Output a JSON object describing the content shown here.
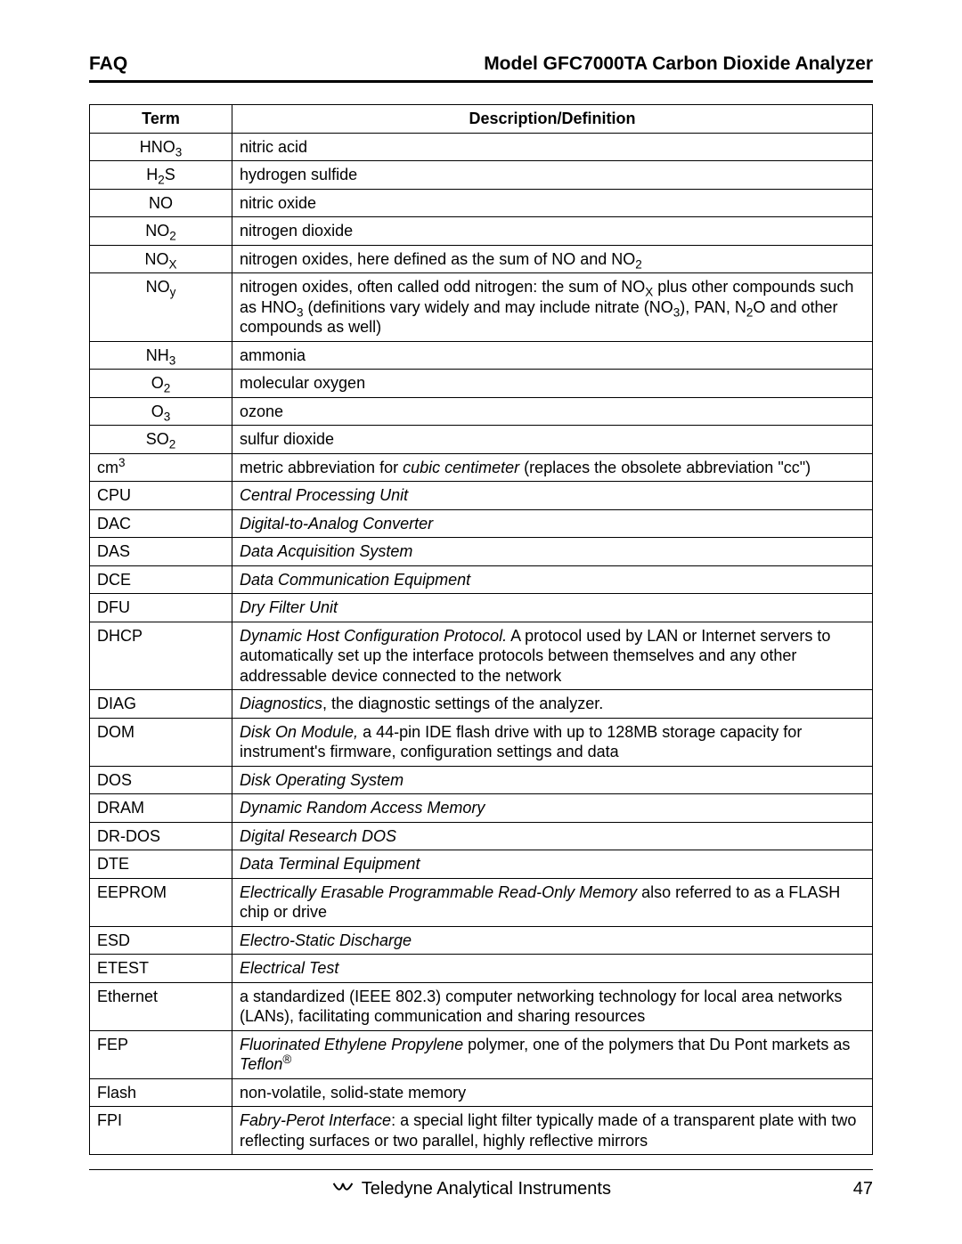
{
  "header": {
    "left": "FAQ",
    "right": "Model GFC7000TA Carbon Dioxide Analyzer"
  },
  "table": {
    "columns": [
      "Term",
      "Description/Definition"
    ],
    "rows": [
      {
        "term_html": "HNO<sub>3</sub>",
        "center": true,
        "def_html": "nitric acid"
      },
      {
        "term_html": "H<sub>2</sub>S",
        "center": true,
        "def_html": "hydrogen sulfide"
      },
      {
        "term_html": "NO",
        "center": true,
        "def_html": "nitric oxide"
      },
      {
        "term_html": "NO<sub>2</sub>",
        "center": true,
        "def_html": "nitrogen dioxide"
      },
      {
        "term_html": "NO<sub>X</sub>",
        "center": true,
        "def_html": "nitrogen oxides, here defined as the sum of NO and NO<sub>2</sub>"
      },
      {
        "term_html": "NO<sub>y</sub>",
        "center": true,
        "def_html": "nitrogen oxides, often called odd nitrogen: the sum of NO<sub>X</sub> plus other compounds such as HNO<sub>3</sub> (definitions vary widely and may include nitrate (NO<sub>3</sub>), PAN, N<sub>2</sub>O and other compounds as well)"
      },
      {
        "term_html": "NH<sub>3</sub>",
        "center": true,
        "def_html": "ammonia"
      },
      {
        "term_html": "O<sub>2</sub>",
        "center": true,
        "def_html": "molecular oxygen"
      },
      {
        "term_html": "O<sub>3</sub>",
        "center": true,
        "def_html": "ozone"
      },
      {
        "term_html": "SO<sub>2</sub>",
        "center": true,
        "def_html": "sulfur dioxide"
      },
      {
        "term_html": "cm<sup>3</sup>",
        "center": false,
        "def_html": "metric abbreviation for <i>cubic centimeter</i>  (replaces the obsolete abbreviation \"cc\")"
      },
      {
        "term_html": "CPU",
        "center": false,
        "def_html": "<i>Central Processing Unit</i>"
      },
      {
        "term_html": "DAC",
        "center": false,
        "def_html": "<i>Digital-to-Analog Converter</i>"
      },
      {
        "term_html": "DAS",
        "center": false,
        "def_html": "<i>Data Acquisition System</i>"
      },
      {
        "term_html": "DCE",
        "center": false,
        "def_html": "<i>Data Communication Equipment</i>"
      },
      {
        "term_html": "DFU",
        "center": false,
        "def_html": "<i>Dry Filter Unit</i>"
      },
      {
        "term_html": "DHCP",
        "center": false,
        "def_html": "<i>Dynamic Host Configuration Protocol.</i>  A protocol used by LAN or Internet servers to automatically set up the interface protocols between themselves and any other addressable device connected to the network"
      },
      {
        "term_html": "DIAG",
        "center": false,
        "def_html": "<i>Diagnostics</i>, the diagnostic settings of the analyzer."
      },
      {
        "term_html": "DOM",
        "center": false,
        "def_html": "<i>Disk On Module,</i> a 44-pin IDE flash drive with up to 128MB storage capacity for instrument's firmware, configuration settings and data"
      },
      {
        "term_html": "DOS",
        "center": false,
        "def_html": "<i>Disk Operating System</i>"
      },
      {
        "term_html": "DRAM",
        "center": false,
        "def_html": "<i>Dynamic Random Access Memory</i>"
      },
      {
        "term_html": "DR-DOS",
        "center": false,
        "def_html": "<i>Digital Research DOS</i>"
      },
      {
        "term_html": "DTE",
        "center": false,
        "def_html": "<i>Data Terminal Equipment</i>"
      },
      {
        "term_html": "EEPROM",
        "center": false,
        "def_html": "<i>Electrically Erasable Programmable Read-Only Memory</i> also referred to as a FLASH chip or drive"
      },
      {
        "term_html": "ESD",
        "center": false,
        "def_html": "<i>Electro-Static Discharge</i>"
      },
      {
        "term_html": "ETEST",
        "center": false,
        "def_html": "<i>Electrical Test</i>"
      },
      {
        "term_html": "Ethernet",
        "center": false,
        "def_html": "a standardized (IEEE 802.3) computer networking technology for local area networks (LANs), facilitating communication and sharing resources"
      },
      {
        "term_html": "FEP",
        "center": false,
        "def_html": "<i>Fluorinated Ethylene Propylene</i> polymer, one of the polymers that Du Pont markets as <i>Teflon</i><sup>®</sup>"
      },
      {
        "term_html": "Flash",
        "center": false,
        "def_html": "non-volatile, solid-state memory"
      },
      {
        "term_html": "FPI",
        "center": false,
        "def_html": "<i>Fabry-Perot Interface</i>: a special light filter typically made of a transparent plate with two reflecting surfaces or two parallel, highly reflective mirrors"
      }
    ]
  },
  "footer": {
    "brand": "Teledyne Analytical Instruments",
    "page": "47"
  }
}
